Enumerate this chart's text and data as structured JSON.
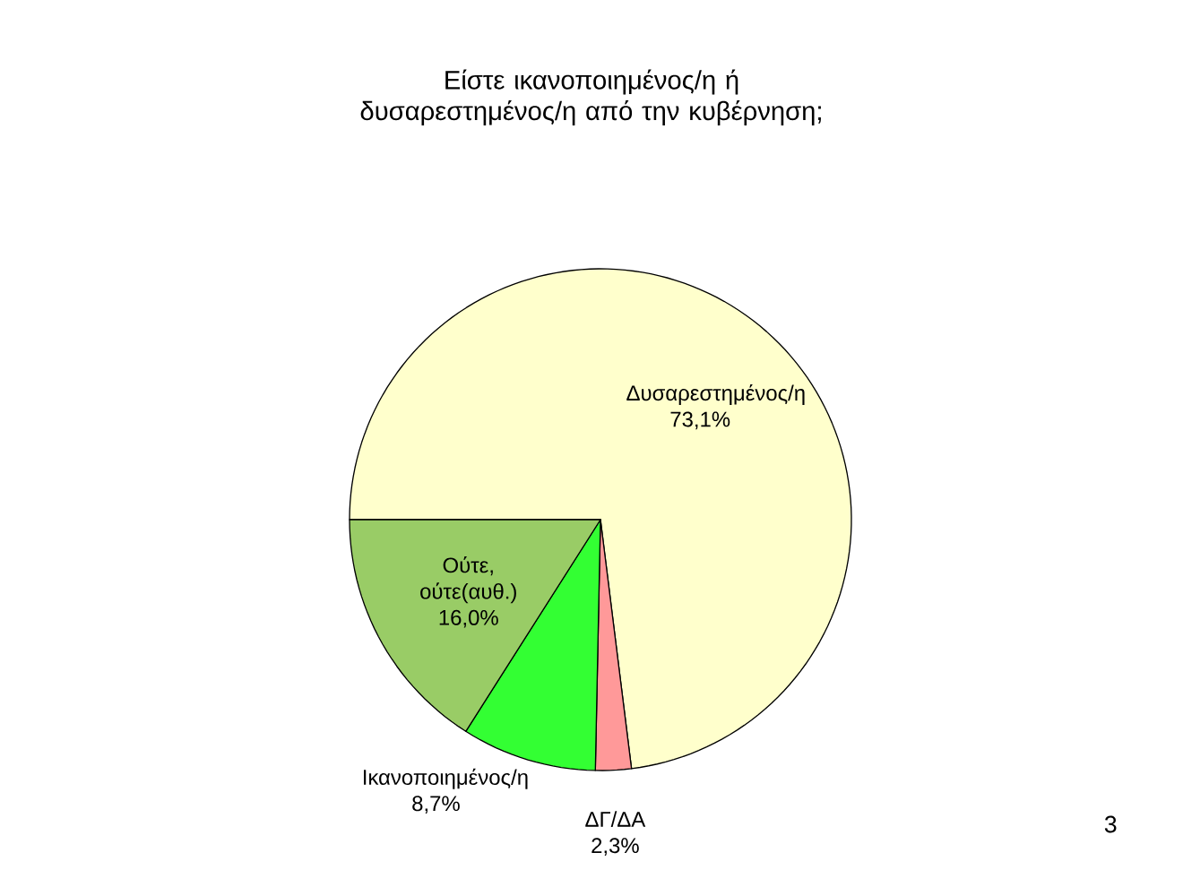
{
  "chart_data": {
    "type": "pie",
    "title": "Είστε ικανοποιημένος/η ή δυσαρεστημένος/η από την κυβέρνηση;",
    "categories": [
      "Δυσαρεστημένος/η",
      "ΔΓ/ΔΑ",
      "Ικανοποιημένος/η",
      "Ούτε, ούτε(αυθ.)"
    ],
    "values": [
      73.1,
      2.3,
      8.7,
      16.0
    ],
    "value_labels": [
      "73,1%",
      "2,3%",
      "8,7%",
      "16,0%"
    ],
    "colors": [
      "#ffffcc",
      "#ff9999",
      "#33ff33",
      "#99cc66"
    ],
    "annotations": [
      "3"
    ]
  }
}
